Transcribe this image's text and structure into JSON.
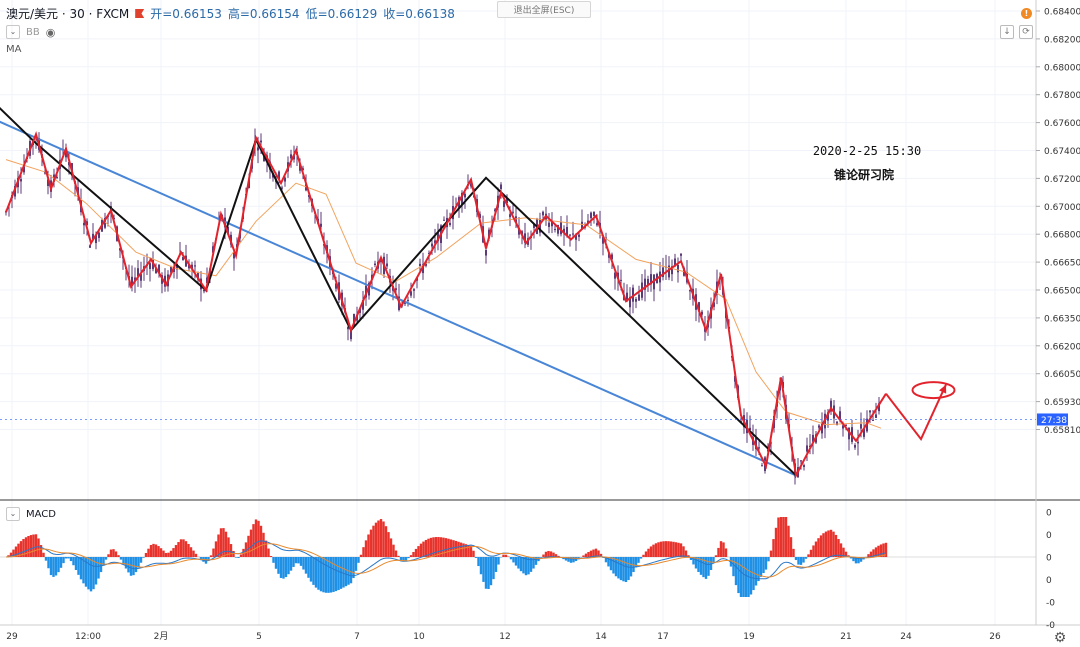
{
  "header": {
    "symbol": "澳元/美元 · 30 · FXCM",
    "open": "开=0.66153",
    "high": "高=0.66154",
    "low": "低=0.66129",
    "close": "收=0.66138",
    "indicator_bb": "BB",
    "indicator_ma": "MA"
  },
  "toolbar": {
    "exit_fullscreen": "退出全屏(ESC)",
    "alert_badge": "!"
  },
  "macd_panel": {
    "label": "MACD"
  },
  "annotation": {
    "datetime": "2020-2-25 15:30",
    "author": "锥论研习院"
  },
  "price_badge": "27:38",
  "colors": {
    "zigzag_red": "#e3232c",
    "trend_black": "#111111",
    "trend_blue": "#4a86d6",
    "ma_orange": "#f2a35e",
    "candle": "#5b3a78",
    "macd_pos": "#e8322c",
    "macd_neg": "#1e90e6",
    "grid": "#f0f3fa",
    "badge_blue": "#2962ff"
  },
  "chart_data": {
    "type": "line",
    "title": "澳元/美元 · 30 · FXCM",
    "xlabel": "",
    "ylabel": "",
    "ylim": [
      0.6575,
      0.6845
    ],
    "y_ticks": [
      "0.68400",
      "0.68200",
      "0.68000",
      "0.67800",
      "0.67600",
      "0.67400",
      "0.67200",
      "0.67000",
      "0.66800",
      "0.66650",
      "0.66500",
      "0.66350",
      "0.66200",
      "0.66050",
      "0.65930",
      "0.65810"
    ],
    "x_ticks": [
      "29",
      "12:00",
      "2月",
      "5",
      "7",
      "10",
      "12",
      "14",
      "17",
      "19",
      "21",
      "24",
      "26"
    ],
    "zigzag": [
      {
        "t": 0,
        "p": 0.6728
      },
      {
        "t": 6,
        "p": 0.6771
      },
      {
        "t": 9,
        "p": 0.6741
      },
      {
        "t": 12,
        "p": 0.6763
      },
      {
        "t": 17,
        "p": 0.6711
      },
      {
        "t": 21,
        "p": 0.6729
      },
      {
        "t": 25,
        "p": 0.6687
      },
      {
        "t": 29,
        "p": 0.6702
      },
      {
        "t": 32,
        "p": 0.6688
      },
      {
        "t": 35,
        "p": 0.6706
      },
      {
        "t": 40,
        "p": 0.6685
      },
      {
        "t": 43,
        "p": 0.6727
      },
      {
        "t": 46,
        "p": 0.6704
      },
      {
        "t": 50,
        "p": 0.6769
      },
      {
        "t": 55,
        "p": 0.6744
      },
      {
        "t": 58,
        "p": 0.6762
      },
      {
        "t": 69,
        "p": 0.6663
      },
      {
        "t": 75,
        "p": 0.6703
      },
      {
        "t": 79,
        "p": 0.6676
      },
      {
        "t": 93,
        "p": 0.6746
      },
      {
        "t": 96,
        "p": 0.6708
      },
      {
        "t": 99,
        "p": 0.6739
      },
      {
        "t": 104,
        "p": 0.6711
      },
      {
        "t": 108,
        "p": 0.6726
      },
      {
        "t": 113,
        "p": 0.6713
      },
      {
        "t": 118,
        "p": 0.6726
      },
      {
        "t": 124,
        "p": 0.6679
      },
      {
        "t": 135,
        "p": 0.6701
      },
      {
        "t": 140,
        "p": 0.6663
      },
      {
        "t": 143,
        "p": 0.6694
      },
      {
        "t": 147,
        "p": 0.6616
      },
      {
        "t": 152,
        "p": 0.6588
      },
      {
        "t": 155,
        "p": 0.6637
      },
      {
        "t": 158,
        "p": 0.6583
      },
      {
        "t": 165,
        "p": 0.662
      },
      {
        "t": 170,
        "p": 0.6602
      },
      {
        "t": 176,
        "p": 0.6628
      }
    ],
    "black_trend": [
      {
        "t": -3,
        "p": 0.679
      },
      {
        "t": 6,
        "p": 0.6766
      },
      {
        "t": 40,
        "p": 0.6685
      },
      {
        "t": 50,
        "p": 0.6768
      },
      {
        "t": 69,
        "p": 0.6663
      },
      {
        "t": 96,
        "p": 0.6747
      },
      {
        "t": 158,
        "p": 0.6583
      }
    ],
    "blue_trend": [
      {
        "t": -3,
        "p": 0.678
      },
      {
        "t": 158,
        "p": 0.6583
      }
    ],
    "ma_curve": [
      {
        "t": 0,
        "p": 0.6757
      },
      {
        "t": 8,
        "p": 0.675
      },
      {
        "t": 16,
        "p": 0.6733
      },
      {
        "t": 26,
        "p": 0.6706
      },
      {
        "t": 34,
        "p": 0.6697
      },
      {
        "t": 42,
        "p": 0.6693
      },
      {
        "t": 50,
        "p": 0.6723
      },
      {
        "t": 58,
        "p": 0.6744
      },
      {
        "t": 64,
        "p": 0.6738
      },
      {
        "t": 70,
        "p": 0.67
      },
      {
        "t": 78,
        "p": 0.669
      },
      {
        "t": 86,
        "p": 0.6703
      },
      {
        "t": 95,
        "p": 0.6722
      },
      {
        "t": 104,
        "p": 0.6725
      },
      {
        "t": 116,
        "p": 0.6721
      },
      {
        "t": 126,
        "p": 0.6702
      },
      {
        "t": 136,
        "p": 0.6695
      },
      {
        "t": 144,
        "p": 0.668
      },
      {
        "t": 150,
        "p": 0.664
      },
      {
        "t": 156,
        "p": 0.6618
      },
      {
        "t": 164,
        "p": 0.6611
      },
      {
        "t": 172,
        "p": 0.6612
      },
      {
        "t": 175,
        "p": 0.6609
      }
    ],
    "projection": [
      {
        "t": 176,
        "p": 0.6628
      },
      {
        "t": 183,
        "p": 0.6603
      },
      {
        "t": 188,
        "p": 0.6633
      }
    ],
    "target_ellipse": {
      "t": 185.5,
      "p": 0.663
    },
    "current_price": 0.66138,
    "macd_yticks": [
      "0",
      "0",
      "0",
      "0",
      "-0",
      "-0"
    ]
  }
}
